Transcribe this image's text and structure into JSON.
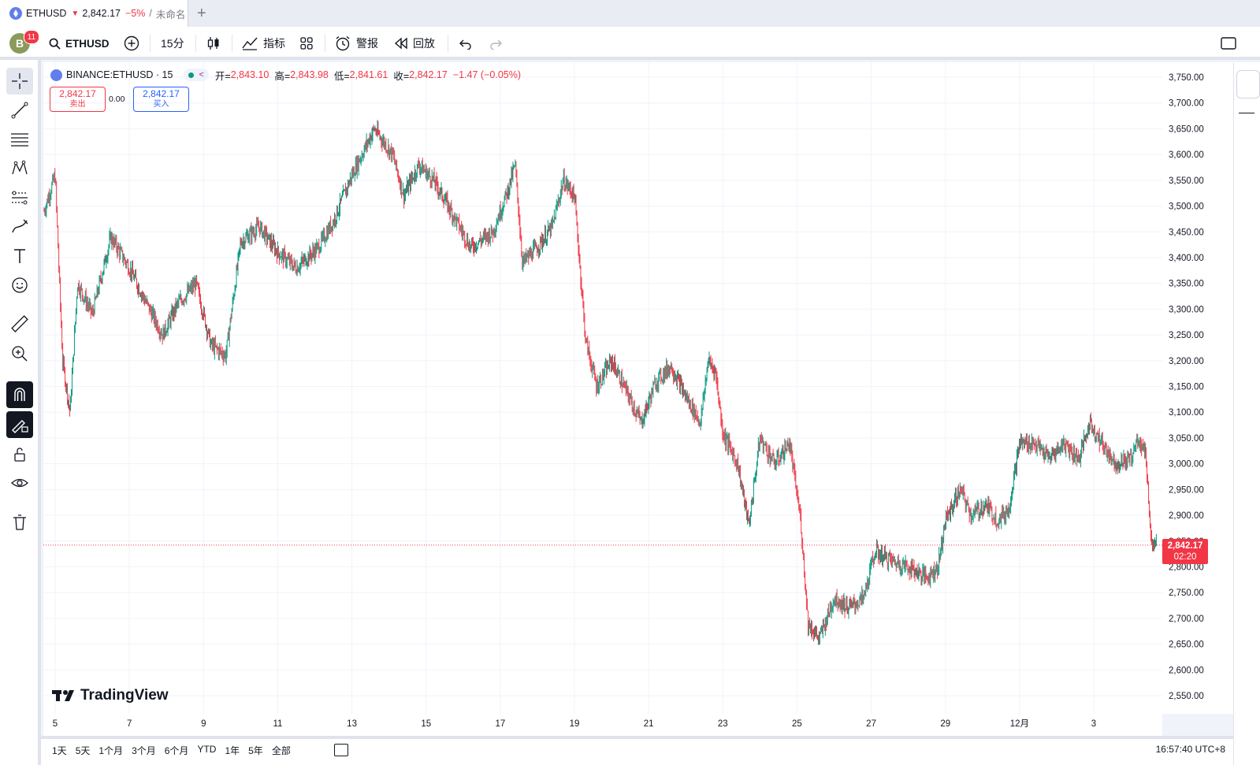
{
  "tab": {
    "symbol": "ETHUSD",
    "arrow": "▼",
    "price": "2,842.17",
    "change": "−5%",
    "sep": "/",
    "layout": "未命名"
  },
  "toolbar": {
    "notif_count": "11",
    "avatar_letter": "B",
    "symbol": "ETHUSD",
    "interval": "15分",
    "indicators": "指标",
    "alert": "警报",
    "replay": "回放"
  },
  "legend": {
    "title": "BINANCE:ETHUSD · 15",
    "o_label": "开=",
    "o": "2,843.10",
    "h_label": "高=",
    "h": "2,843.98",
    "l_label": "低=",
    "l": "2,841.61",
    "c_label": "收=",
    "c": "2,842.17",
    "change": "−1.47 (−0.05%)"
  },
  "trade": {
    "sell_price": "2,842.17",
    "sell_label": "卖出",
    "spread": "0.00",
    "buy_price": "2,842.17",
    "buy_label": "买入"
  },
  "brand": "TradingView",
  "last_price": {
    "value": "2,842.17",
    "countdown": "02:20"
  },
  "bottom": {
    "ranges": [
      "1天",
      "5天",
      "1个月",
      "3个月",
      "6个月",
      "YTD",
      "1年",
      "5年",
      "全部"
    ],
    "clock": "16:57:40 UTC+8"
  },
  "colors": {
    "up": "#089981",
    "down": "#f23645",
    "accent": "#2962ff",
    "price_line": "#f23645"
  },
  "chart_data": {
    "type": "candlestick",
    "symbol": "BINANCE:ETHUSD",
    "interval": "15",
    "x_ticks": [
      "5",
      "7",
      "9",
      "11",
      "13",
      "15",
      "17",
      "19",
      "21",
      "23",
      "25",
      "27",
      "29",
      "12月",
      "3"
    ],
    "y_ticks": [
      "2,550.00",
      "2,600.00",
      "2,650.00",
      "2,700.00",
      "2,750.00",
      "2,800.00",
      "2,850.00",
      "2,900.00",
      "2,950.00",
      "3,000.00",
      "3,050.00",
      "3,100.00",
      "3,150.00",
      "3,200.00",
      "3,250.00",
      "3,300.00",
      "3,350.00",
      "3,400.00",
      "3,450.00",
      "3,500.00",
      "3,550.00",
      "3,600.00",
      "3,650.00",
      "3,700.00",
      "3,750.00"
    ],
    "ylim": [
      2530,
      3770
    ],
    "x_range_days": [
      4.85,
      19.8
    ],
    "grid": true,
    "price_path": [
      [
        4.85,
        3490
      ],
      [
        5.0,
        3560
      ],
      [
        5.1,
        3200
      ],
      [
        5.2,
        3100
      ],
      [
        5.3,
        3350
      ],
      [
        5.5,
        3290
      ],
      [
        5.75,
        3440
      ],
      [
        6.0,
        3380
      ],
      [
        6.2,
        3320
      ],
      [
        6.45,
        3250
      ],
      [
        6.65,
        3310
      ],
      [
        6.9,
        3350
      ],
      [
        7.1,
        3230
      ],
      [
        7.3,
        3210
      ],
      [
        7.5,
        3430
      ],
      [
        7.75,
        3460
      ],
      [
        8.0,
        3410
      ],
      [
        8.25,
        3380
      ],
      [
        8.55,
        3420
      ],
      [
        8.75,
        3470
      ],
      [
        9.0,
        3560
      ],
      [
        9.3,
        3650
      ],
      [
        9.55,
        3600
      ],
      [
        9.7,
        3520
      ],
      [
        9.9,
        3580
      ],
      [
        10.1,
        3550
      ],
      [
        10.3,
        3500
      ],
      [
        10.6,
        3420
      ],
      [
        10.9,
        3450
      ],
      [
        11.1,
        3530
      ],
      [
        11.2,
        3580
      ],
      [
        11.3,
        3390
      ],
      [
        11.5,
        3420
      ],
      [
        11.7,
        3460
      ],
      [
        11.85,
        3550
      ],
      [
        12.0,
        3520
      ],
      [
        12.15,
        3240
      ],
      [
        12.3,
        3150
      ],
      [
        12.5,
        3200
      ],
      [
        12.7,
        3140
      ],
      [
        12.9,
        3080
      ],
      [
        13.1,
        3160
      ],
      [
        13.3,
        3190
      ],
      [
        13.5,
        3130
      ],
      [
        13.7,
        3080
      ],
      [
        13.8,
        3200
      ],
      [
        13.9,
        3180
      ],
      [
        14.0,
        3060
      ],
      [
        14.2,
        3000
      ],
      [
        14.35,
        2880
      ],
      [
        14.5,
        3050
      ],
      [
        14.7,
        3000
      ],
      [
        14.9,
        3040
      ],
      [
        15.05,
        2890
      ],
      [
        15.15,
        2690
      ],
      [
        15.3,
        2660
      ],
      [
        15.5,
        2740
      ],
      [
        15.7,
        2720
      ],
      [
        15.9,
        2740
      ],
      [
        16.05,
        2830
      ],
      [
        16.3,
        2810
      ],
      [
        16.5,
        2800
      ],
      [
        16.75,
        2780
      ],
      [
        16.9,
        2800
      ],
      [
        17.0,
        2890
      ],
      [
        17.2,
        2950
      ],
      [
        17.35,
        2900
      ],
      [
        17.55,
        2920
      ],
      [
        17.7,
        2890
      ],
      [
        17.85,
        2910
      ],
      [
        18.0,
        3040
      ],
      [
        18.2,
        3040
      ],
      [
        18.4,
        3010
      ],
      [
        18.6,
        3040
      ],
      [
        18.8,
        3010
      ],
      [
        18.95,
        3080
      ],
      [
        19.1,
        3040
      ],
      [
        19.3,
        3000
      ],
      [
        19.5,
        3010
      ],
      [
        19.6,
        3050
      ],
      [
        19.7,
        3020
      ],
      [
        19.78,
        2840
      ],
      [
        19.85,
        2842.17
      ]
    ],
    "last": 2842.17
  }
}
